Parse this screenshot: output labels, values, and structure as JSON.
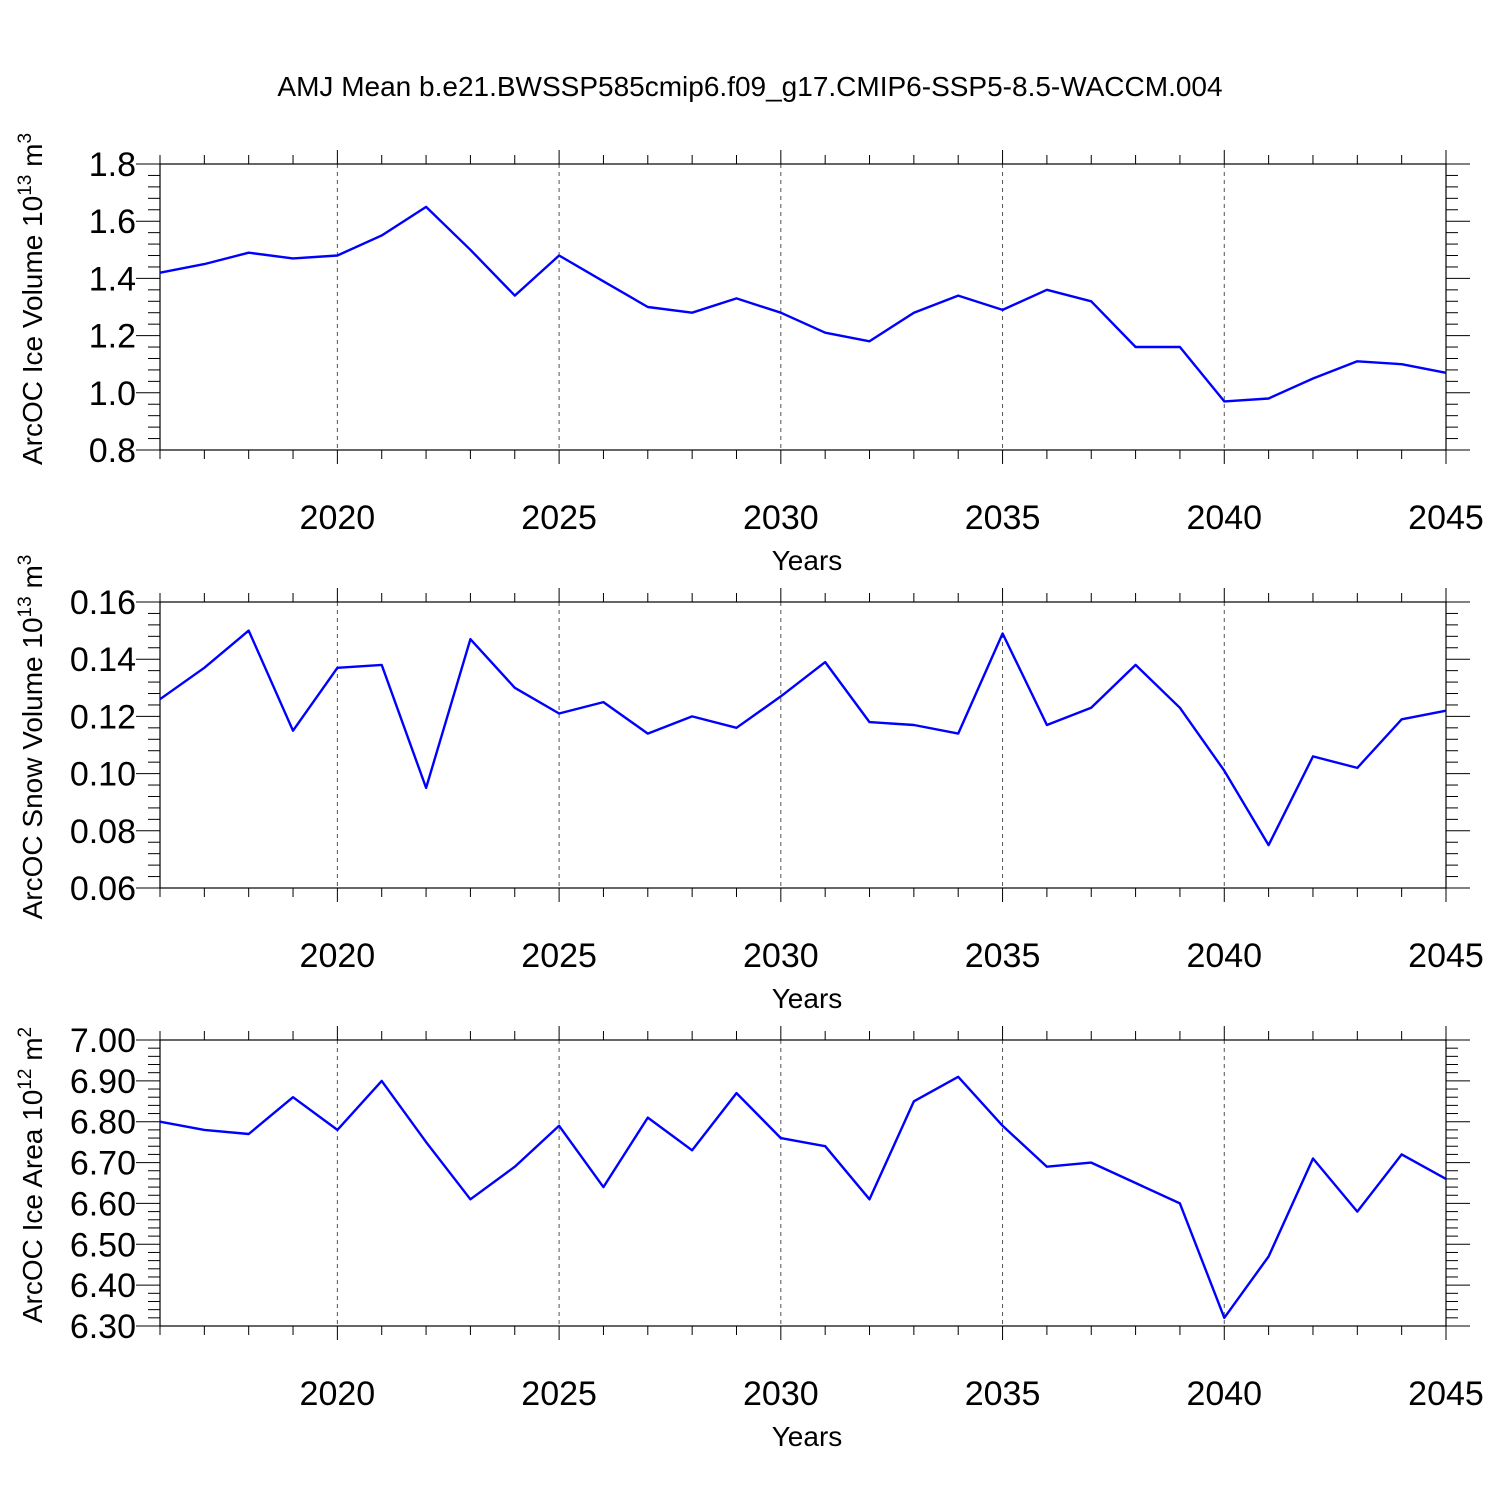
{
  "title": "AMJ Mean b.e21.BWSSP585cmip6.f09_g17.CMIP6-SSP5-8.5-WACCM.004",
  "line_color": "#0000ff",
  "chart_data": [
    {
      "type": "line",
      "ylabel": "ArcOC Ice Volume 10",
      "ylabel_sup": "13",
      "ylabel_unit": "m",
      "ylabel_unit_sup": "3",
      "xlabel": "Years",
      "xlim": [
        2016,
        2045
      ],
      "ylim": [
        0.8,
        1.8
      ],
      "x_ticks": [
        "2020",
        "2025",
        "2030",
        "2035",
        "2040",
        "2045"
      ],
      "y_ticks": [
        "0.8",
        "1.0",
        "1.2",
        "1.4",
        "1.6",
        "1.8"
      ],
      "grid": "dashed vertical at labeled years",
      "x": [
        2016,
        2017,
        2018,
        2019,
        2020,
        2021,
        2022,
        2023,
        2024,
        2025,
        2026,
        2027,
        2028,
        2029,
        2030,
        2031,
        2032,
        2033,
        2034,
        2035,
        2036,
        2037,
        2038,
        2039,
        2040,
        2041,
        2042,
        2043,
        2044,
        2045
      ],
      "values": [
        1.42,
        1.45,
        1.49,
        1.47,
        1.48,
        1.55,
        1.65,
        1.5,
        1.34,
        1.48,
        1.39,
        1.3,
        1.28,
        1.33,
        1.28,
        1.21,
        1.18,
        1.28,
        1.34,
        1.29,
        1.36,
        1.32,
        1.16,
        1.16,
        0.97,
        0.98,
        1.05,
        1.11,
        1.1,
        1.07
      ]
    },
    {
      "type": "line",
      "ylabel": "ArcOC Snow Volume 10",
      "ylabel_sup": "13",
      "ylabel_unit": "m",
      "ylabel_unit_sup": "3",
      "xlabel": "Years",
      "xlim": [
        2016,
        2045
      ],
      "ylim": [
        0.06,
        0.16
      ],
      "x_ticks": [
        "2020",
        "2025",
        "2030",
        "2035",
        "2040",
        "2045"
      ],
      "y_ticks": [
        "0.06",
        "0.08",
        "0.10",
        "0.12",
        "0.14",
        "0.16"
      ],
      "grid": "dashed vertical at labeled years",
      "x": [
        2016,
        2017,
        2018,
        2019,
        2020,
        2021,
        2022,
        2023,
        2024,
        2025,
        2026,
        2027,
        2028,
        2029,
        2030,
        2031,
        2032,
        2033,
        2034,
        2035,
        2036,
        2037,
        2038,
        2039,
        2040,
        2041,
        2042,
        2043,
        2044,
        2045
      ],
      "values": [
        0.126,
        0.137,
        0.15,
        0.115,
        0.137,
        0.138,
        0.095,
        0.147,
        0.13,
        0.121,
        0.125,
        0.114,
        0.12,
        0.116,
        0.127,
        0.139,
        0.118,
        0.117,
        0.114,
        0.149,
        0.117,
        0.123,
        0.138,
        0.123,
        0.101,
        0.075,
        0.106,
        0.102,
        0.119,
        0.122
      ]
    },
    {
      "type": "line",
      "ylabel": "ArcOC Ice Area 10",
      "ylabel_sup": "12",
      "ylabel_unit": "m",
      "ylabel_unit_sup": "2",
      "xlabel": "Years",
      "xlim": [
        2016,
        2045
      ],
      "ylim": [
        6.3,
        7.0
      ],
      "x_ticks": [
        "2020",
        "2025",
        "2030",
        "2035",
        "2040",
        "2045"
      ],
      "y_ticks": [
        "6.30",
        "6.40",
        "6.50",
        "6.60",
        "6.70",
        "6.80",
        "6.90",
        "7.00"
      ],
      "grid": "dashed vertical at labeled years",
      "x": [
        2016,
        2017,
        2018,
        2019,
        2020,
        2021,
        2022,
        2023,
        2024,
        2025,
        2026,
        2027,
        2028,
        2029,
        2030,
        2031,
        2032,
        2033,
        2034,
        2035,
        2036,
        2037,
        2038,
        2039,
        2040,
        2041,
        2042,
        2043,
        2044,
        2045
      ],
      "values": [
        6.8,
        6.78,
        6.77,
        6.86,
        6.78,
        6.9,
        6.75,
        6.61,
        6.69,
        6.79,
        6.64,
        6.81,
        6.73,
        6.87,
        6.76,
        6.74,
        6.61,
        6.85,
        6.91,
        6.79,
        6.69,
        6.7,
        6.65,
        6.6,
        6.32,
        6.47,
        6.71,
        6.58,
        6.72,
        6.66
      ]
    }
  ]
}
